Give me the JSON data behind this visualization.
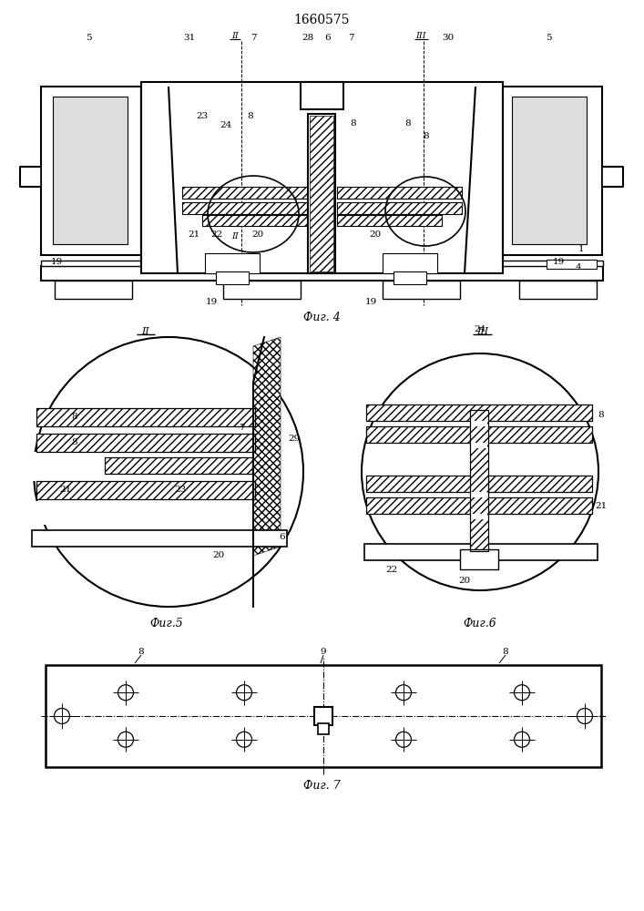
{
  "title": "1660575",
  "fig4_label": "Фиг. 4",
  "fig5_label": "Фиг.5",
  "fig6_label": "Фиг.6",
  "fig7_label": "Фиг. 7",
  "background_color": "#ffffff",
  "line_color": "#000000",
  "title_fontsize": 10,
  "label_fontsize": 9,
  "annot_fontsize": 7.5
}
